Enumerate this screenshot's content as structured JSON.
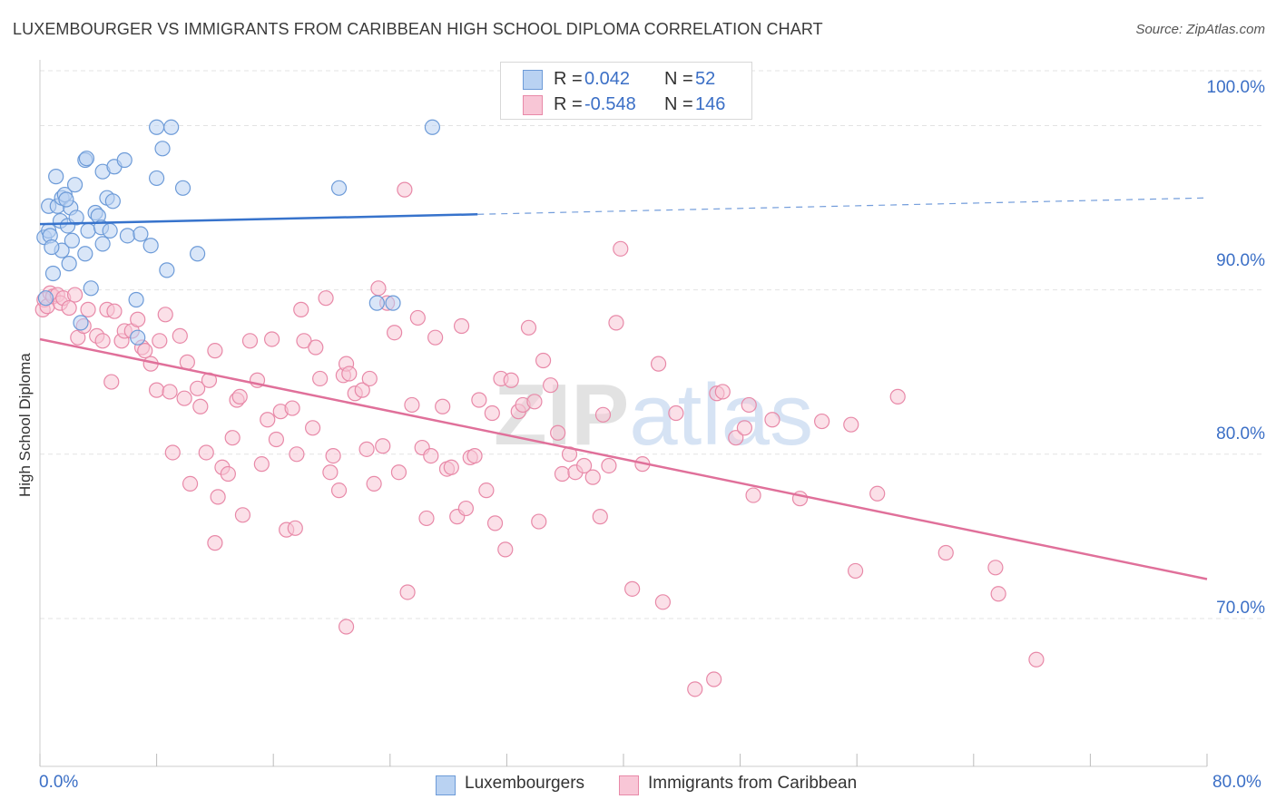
{
  "title": "LUXEMBOURGER VS IMMIGRANTS FROM CARIBBEAN HIGH SCHOOL DIPLOMA CORRELATION CHART",
  "source": "Source: ZipAtlas.com",
  "watermark": "ZIPatlas",
  "colors": {
    "blue_fill": "#b9d2f2",
    "blue_stroke": "#6d9bd8",
    "blue_line": "#3773cc",
    "pink_fill": "#f8c6d6",
    "pink_stroke": "#e889a8",
    "pink_line": "#e0709a",
    "accent_text": "#3b6fc6",
    "grid": "#e3e3e3"
  },
  "legend": {
    "rows": [
      {
        "r_label": "R =",
        "r_value": "0.042",
        "n_label": "N =",
        "n_value": "52"
      },
      {
        "r_label": "R =",
        "r_value": "-0.548",
        "n_label": "N =",
        "n_value": "146"
      }
    ]
  },
  "bottom_legend": {
    "series1": "Luxembourgers",
    "series2": "Immigrants from Caribbean"
  },
  "axes": {
    "ylabel": "High School Diploma",
    "x_min_label": "0.0%",
    "x_max_label": "80.0%",
    "y_ticks": [
      "100.0%",
      "90.0%",
      "80.0%",
      "70.0%"
    ]
  },
  "chart_data": {
    "type": "scatter",
    "xlim": [
      0,
      80
    ],
    "ylim": [
      61,
      104
    ],
    "y_grid": [
      100,
      90,
      80,
      70
    ],
    "xlabel": "",
    "ylabel": "High School Diploma",
    "series": [
      {
        "name": "Luxembourgers",
        "trend": {
          "x0": 0,
          "y0": 94.0,
          "x1": 30,
          "y1": 94.6,
          "x_dash_end": 80,
          "y_dash_end": 95.6
        },
        "points": [
          [
            0.3,
            93.2
          ],
          [
            0.4,
            89.5
          ],
          [
            0.6,
            93.6
          ],
          [
            0.6,
            95.1
          ],
          [
            0.7,
            93.3
          ],
          [
            0.9,
            91.0
          ],
          [
            1.1,
            96.9
          ],
          [
            1.2,
            95.1
          ],
          [
            1.4,
            94.2
          ],
          [
            1.5,
            92.4
          ],
          [
            1.5,
            95.6
          ],
          [
            1.7,
            95.8
          ],
          [
            1.9,
            93.9
          ],
          [
            2.0,
            91.6
          ],
          [
            2.1,
            95.0
          ],
          [
            2.2,
            93.0
          ],
          [
            2.4,
            96.4
          ],
          [
            2.5,
            94.4
          ],
          [
            2.8,
            88.0
          ],
          [
            3.1,
            97.9
          ],
          [
            3.1,
            92.2
          ],
          [
            3.3,
            93.6
          ],
          [
            3.5,
            90.1
          ],
          [
            3.8,
            94.7
          ],
          [
            4.0,
            94.5
          ],
          [
            4.2,
            93.8
          ],
          [
            4.3,
            92.8
          ],
          [
            4.3,
            97.2
          ],
          [
            4.6,
            95.6
          ],
          [
            4.8,
            93.6
          ],
          [
            5.0,
            95.4
          ],
          [
            5.1,
            97.5
          ],
          [
            5.8,
            97.9
          ],
          [
            6.0,
            93.3
          ],
          [
            6.6,
            89.4
          ],
          [
            6.7,
            87.1
          ],
          [
            6.9,
            93.4
          ],
          [
            7.6,
            92.7
          ],
          [
            8.0,
            96.8
          ],
          [
            8.0,
            99.9
          ],
          [
            8.4,
            98.6
          ],
          [
            8.7,
            91.2
          ],
          [
            9.0,
            99.9
          ],
          [
            9.8,
            96.2
          ],
          [
            10.8,
            92.2
          ],
          [
            20.5,
            96.2
          ],
          [
            23.1,
            89.2
          ],
          [
            24.2,
            89.2
          ],
          [
            26.9,
            99.9
          ],
          [
            3.2,
            98.0
          ],
          [
            1.8,
            95.5
          ],
          [
            0.8,
            92.6
          ]
        ]
      },
      {
        "name": "Immigrants from Caribbean",
        "trend": {
          "x0": 0,
          "y0": 87.0,
          "x1": 80,
          "y1": 72.4
        },
        "points": [
          [
            0.2,
            88.8
          ],
          [
            0.3,
            89.4
          ],
          [
            0.5,
            89.0
          ],
          [
            0.7,
            89.8
          ],
          [
            0.9,
            89.6
          ],
          [
            1.2,
            89.7
          ],
          [
            1.4,
            89.2
          ],
          [
            1.6,
            89.5
          ],
          [
            2.0,
            88.9
          ],
          [
            2.4,
            89.7
          ],
          [
            2.6,
            87.1
          ],
          [
            3.0,
            87.8
          ],
          [
            3.3,
            88.8
          ],
          [
            3.9,
            87.2
          ],
          [
            4.3,
            86.9
          ],
          [
            4.6,
            88.8
          ],
          [
            4.9,
            84.4
          ],
          [
            5.1,
            88.7
          ],
          [
            5.6,
            86.9
          ],
          [
            5.8,
            87.5
          ],
          [
            6.3,
            87.5
          ],
          [
            6.7,
            88.2
          ],
          [
            7.0,
            86.5
          ],
          [
            7.2,
            86.3
          ],
          [
            7.6,
            85.5
          ],
          [
            8.0,
            83.9
          ],
          [
            8.2,
            86.9
          ],
          [
            8.6,
            88.5
          ],
          [
            8.9,
            83.8
          ],
          [
            9.1,
            80.1
          ],
          [
            9.6,
            87.2
          ],
          [
            9.9,
            83.4
          ],
          [
            10.1,
            85.6
          ],
          [
            10.3,
            78.2
          ],
          [
            10.8,
            84.0
          ],
          [
            11.0,
            82.9
          ],
          [
            11.4,
            80.1
          ],
          [
            11.6,
            84.5
          ],
          [
            12.0,
            86.3
          ],
          [
            12.2,
            77.4
          ],
          [
            12.5,
            79.2
          ],
          [
            12.9,
            78.8
          ],
          [
            13.2,
            81.0
          ],
          [
            13.5,
            83.3
          ],
          [
            13.7,
            83.5
          ],
          [
            13.9,
            76.3
          ],
          [
            14.4,
            86.9
          ],
          [
            14.9,
            84.5
          ],
          [
            15.2,
            79.4
          ],
          [
            15.6,
            82.1
          ],
          [
            15.9,
            87.0
          ],
          [
            16.2,
            80.9
          ],
          [
            16.5,
            82.6
          ],
          [
            16.9,
            75.4
          ],
          [
            17.3,
            82.8
          ],
          [
            17.6,
            80.0
          ],
          [
            17.9,
            88.8
          ],
          [
            18.1,
            86.9
          ],
          [
            18.7,
            81.6
          ],
          [
            18.9,
            86.5
          ],
          [
            19.2,
            84.6
          ],
          [
            19.6,
            89.5
          ],
          [
            19.9,
            78.9
          ],
          [
            20.1,
            79.9
          ],
          [
            20.5,
            77.8
          ],
          [
            20.8,
            84.8
          ],
          [
            21.0,
            85.5
          ],
          [
            21.2,
            84.9
          ],
          [
            21.6,
            83.7
          ],
          [
            22.1,
            83.9
          ],
          [
            22.4,
            80.3
          ],
          [
            22.6,
            84.6
          ],
          [
            22.9,
            78.2
          ],
          [
            23.2,
            90.1
          ],
          [
            23.5,
            80.5
          ],
          [
            23.8,
            89.2
          ],
          [
            24.3,
            87.4
          ],
          [
            24.6,
            78.9
          ],
          [
            25.2,
            71.6
          ],
          [
            25.5,
            83.0
          ],
          [
            25.9,
            88.3
          ],
          [
            26.2,
            80.4
          ],
          [
            26.5,
            76.1
          ],
          [
            26.8,
            79.9
          ],
          [
            27.1,
            87.1
          ],
          [
            27.6,
            82.9
          ],
          [
            27.9,
            79.1
          ],
          [
            28.2,
            79.2
          ],
          [
            28.6,
            76.2
          ],
          [
            28.9,
            87.8
          ],
          [
            29.2,
            76.7
          ],
          [
            29.5,
            79.8
          ],
          [
            29.8,
            79.9
          ],
          [
            30.1,
            83.3
          ],
          [
            30.6,
            77.8
          ],
          [
            31.0,
            82.5
          ],
          [
            31.2,
            75.8
          ],
          [
            31.6,
            84.6
          ],
          [
            31.9,
            74.2
          ],
          [
            32.3,
            84.5
          ],
          [
            32.8,
            82.6
          ],
          [
            33.1,
            83.0
          ],
          [
            33.5,
            87.7
          ],
          [
            33.9,
            83.2
          ],
          [
            34.2,
            75.9
          ],
          [
            34.5,
            85.7
          ],
          [
            35.0,
            84.2
          ],
          [
            35.5,
            81.3
          ],
          [
            35.8,
            78.8
          ],
          [
            36.3,
            80.0
          ],
          [
            36.7,
            78.9
          ],
          [
            37.3,
            79.3
          ],
          [
            37.9,
            78.6
          ],
          [
            38.4,
            76.2
          ],
          [
            38.6,
            82.4
          ],
          [
            39.0,
            79.3
          ],
          [
            39.5,
            88.0
          ],
          [
            39.8,
            92.5
          ],
          [
            40.6,
            71.8
          ],
          [
            41.3,
            79.4
          ],
          [
            42.4,
            85.5
          ],
          [
            42.7,
            71.0
          ],
          [
            43.6,
            82.5
          ],
          [
            44.9,
            65.7
          ],
          [
            46.2,
            66.3
          ],
          [
            46.4,
            83.7
          ],
          [
            46.8,
            83.8
          ],
          [
            47.7,
            81.0
          ],
          [
            48.3,
            81.6
          ],
          [
            48.6,
            83.0
          ],
          [
            48.9,
            77.5
          ],
          [
            50.2,
            82.1
          ],
          [
            52.1,
            77.3
          ],
          [
            53.6,
            82.0
          ],
          [
            55.6,
            81.8
          ],
          [
            55.9,
            72.9
          ],
          [
            57.4,
            77.6
          ],
          [
            58.8,
            83.5
          ],
          [
            62.1,
            74.0
          ],
          [
            65.5,
            73.1
          ],
          [
            65.7,
            71.5
          ],
          [
            68.3,
            67.5
          ],
          [
            21.0,
            69.5
          ],
          [
            25.0,
            96.1
          ],
          [
            17.5,
            75.5
          ],
          [
            12.0,
            74.6
          ]
        ]
      }
    ]
  }
}
